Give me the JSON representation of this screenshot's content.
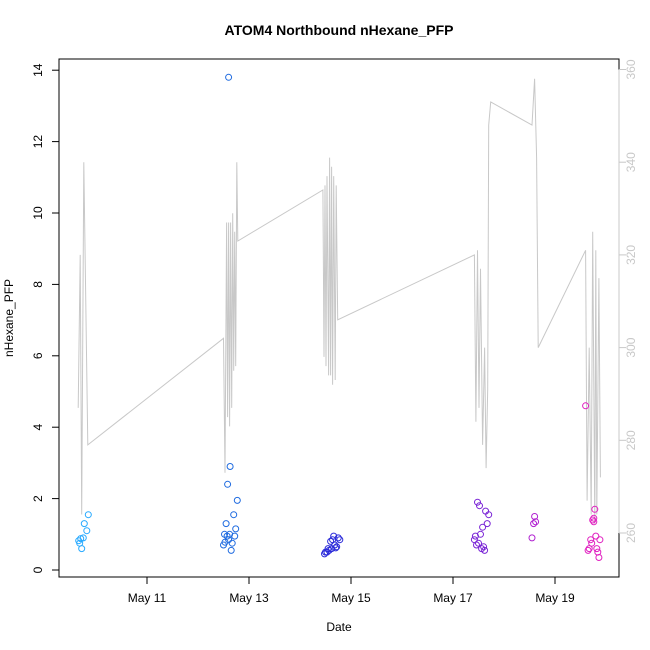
{
  "chart_data": {
    "type": "scatter",
    "title": "ATOM4 Northbound nHexane_PFP",
    "xlabel": "Date",
    "ylabel": "nHexane_PFP",
    "xlim": [
      9.6,
      19.9
    ],
    "ylim": [
      0,
      14
    ],
    "y2lim": [
      250,
      360
    ],
    "x_ticks": [
      {
        "value": 11,
        "label": "May 11"
      },
      {
        "value": 13,
        "label": "May 13"
      },
      {
        "value": 15,
        "label": "May 15"
      },
      {
        "value": 17,
        "label": "May 17"
      },
      {
        "value": 19,
        "label": "May 19"
      }
    ],
    "y_ticks": [
      0,
      2,
      4,
      6,
      8,
      10,
      12,
      14
    ],
    "y2_ticks": [
      260,
      280,
      300,
      320,
      340,
      360
    ],
    "colors": {
      "trace": "#c8c8c8",
      "day1": "#29aaff",
      "day2": "#1f6be0",
      "day3": "#2a2ad9",
      "day4": "#7a25d6",
      "day5": "#b020d0",
      "day6": "#e020c0"
    },
    "series": [
      {
        "color_key": "day1",
        "points": [
          [
            9.66,
            0.82
          ],
          [
            9.68,
            0.75
          ],
          [
            9.7,
            0.88
          ],
          [
            9.72,
            0.6
          ],
          [
            9.75,
            0.9
          ],
          [
            9.77,
            1.3
          ],
          [
            9.82,
            1.1
          ],
          [
            9.85,
            1.55
          ]
        ]
      },
      {
        "color_key": "day2",
        "points": [
          [
            12.5,
            0.7
          ],
          [
            12.52,
            1.0
          ],
          [
            12.53,
            0.78
          ],
          [
            12.55,
            1.3
          ],
          [
            12.57,
            0.95
          ],
          [
            12.58,
            2.4
          ],
          [
            12.6,
            0.85
          ],
          [
            12.62,
            1.0
          ],
          [
            12.63,
            2.9
          ],
          [
            12.65,
            0.55
          ],
          [
            12.67,
            0.75
          ],
          [
            12.7,
            1.55
          ],
          [
            12.72,
            0.95
          ],
          [
            12.74,
            1.15
          ],
          [
            12.77,
            1.95
          ],
          [
            12.6,
            13.8
          ]
        ]
      },
      {
        "color_key": "day3",
        "points": [
          [
            14.48,
            0.45
          ],
          [
            14.5,
            0.5
          ],
          [
            14.53,
            0.5
          ],
          [
            14.55,
            0.6
          ],
          [
            14.57,
            0.55
          ],
          [
            14.6,
            0.8
          ],
          [
            14.62,
            0.6
          ],
          [
            14.64,
            0.85
          ],
          [
            14.66,
            0.95
          ],
          [
            14.68,
            0.7
          ],
          [
            14.7,
            0.62
          ],
          [
            14.72,
            0.65
          ],
          [
            14.75,
            0.9
          ],
          [
            14.78,
            0.85
          ]
        ]
      },
      {
        "color_key": "day4",
        "points": [
          [
            17.42,
            0.85
          ],
          [
            17.44,
            0.95
          ],
          [
            17.46,
            0.7
          ],
          [
            17.48,
            1.9
          ],
          [
            17.5,
            0.75
          ],
          [
            17.52,
            1.8
          ],
          [
            17.54,
            1.0
          ],
          [
            17.56,
            0.6
          ],
          [
            17.58,
            1.2
          ],
          [
            17.6,
            0.65
          ],
          [
            17.62,
            0.55
          ],
          [
            17.64,
            1.65
          ],
          [
            17.67,
            1.3
          ],
          [
            17.7,
            1.55
          ]
        ]
      },
      {
        "color_key": "day5",
        "points": [
          [
            18.55,
            0.9
          ],
          [
            18.58,
            1.3
          ],
          [
            18.62,
            1.35
          ],
          [
            18.6,
            1.5
          ]
        ]
      },
      {
        "color_key": "day6",
        "points": [
          [
            19.6,
            4.6
          ],
          [
            19.65,
            0.55
          ],
          [
            19.67,
            0.6
          ],
          [
            19.7,
            0.85
          ],
          [
            19.72,
            0.75
          ],
          [
            19.74,
            1.4
          ],
          [
            19.76,
            1.35
          ],
          [
            19.78,
            1.7
          ],
          [
            19.8,
            0.95
          ],
          [
            19.82,
            0.6
          ],
          [
            19.84,
            0.5
          ],
          [
            19.86,
            0.35
          ],
          [
            19.88,
            0.85
          ],
          [
            19.76,
            1.45
          ]
        ]
      }
    ],
    "trace_y2": [
      [
        9.65,
        287
      ],
      [
        9.69,
        320
      ],
      [
        9.72,
        264
      ],
      [
        9.76,
        340
      ],
      [
        9.84,
        279
      ],
      [
        12.5,
        302
      ],
      [
        12.53,
        273
      ],
      [
        12.56,
        327
      ],
      [
        12.58,
        285
      ],
      [
        12.6,
        327
      ],
      [
        12.62,
        283
      ],
      [
        12.64,
        327
      ],
      [
        12.66,
        287
      ],
      [
        12.68,
        329
      ],
      [
        12.7,
        295
      ],
      [
        12.72,
        325
      ],
      [
        12.74,
        296
      ],
      [
        12.76,
        340
      ],
      [
        12.78,
        323
      ],
      [
        14.45,
        334
      ],
      [
        14.47,
        298
      ],
      [
        14.49,
        335
      ],
      [
        14.51,
        296
      ],
      [
        14.53,
        337
      ],
      [
        14.56,
        294
      ],
      [
        14.58,
        341
      ],
      [
        14.6,
        294
      ],
      [
        14.62,
        339
      ],
      [
        14.64,
        292
      ],
      [
        14.66,
        337
      ],
      [
        14.69,
        293
      ],
      [
        14.71,
        335
      ],
      [
        14.74,
        306
      ],
      [
        17.42,
        320
      ],
      [
        17.45,
        284
      ],
      [
        17.48,
        321
      ],
      [
        17.51,
        287
      ],
      [
        17.54,
        317
      ],
      [
        17.58,
        279
      ],
      [
        17.62,
        300
      ],
      [
        17.65,
        274
      ],
      [
        17.68,
        291
      ],
      [
        17.7,
        348
      ],
      [
        17.74,
        353
      ],
      [
        18.55,
        348
      ],
      [
        18.6,
        358
      ],
      [
        18.64,
        341
      ],
      [
        18.67,
        300
      ],
      [
        19.6,
        321
      ],
      [
        19.63,
        267
      ],
      [
        19.67,
        300
      ],
      [
        19.71,
        264
      ],
      [
        19.74,
        325
      ],
      [
        19.78,
        262
      ],
      [
        19.8,
        321
      ],
      [
        19.82,
        264
      ],
      [
        19.86,
        315
      ],
      [
        19.89,
        272
      ]
    ]
  }
}
